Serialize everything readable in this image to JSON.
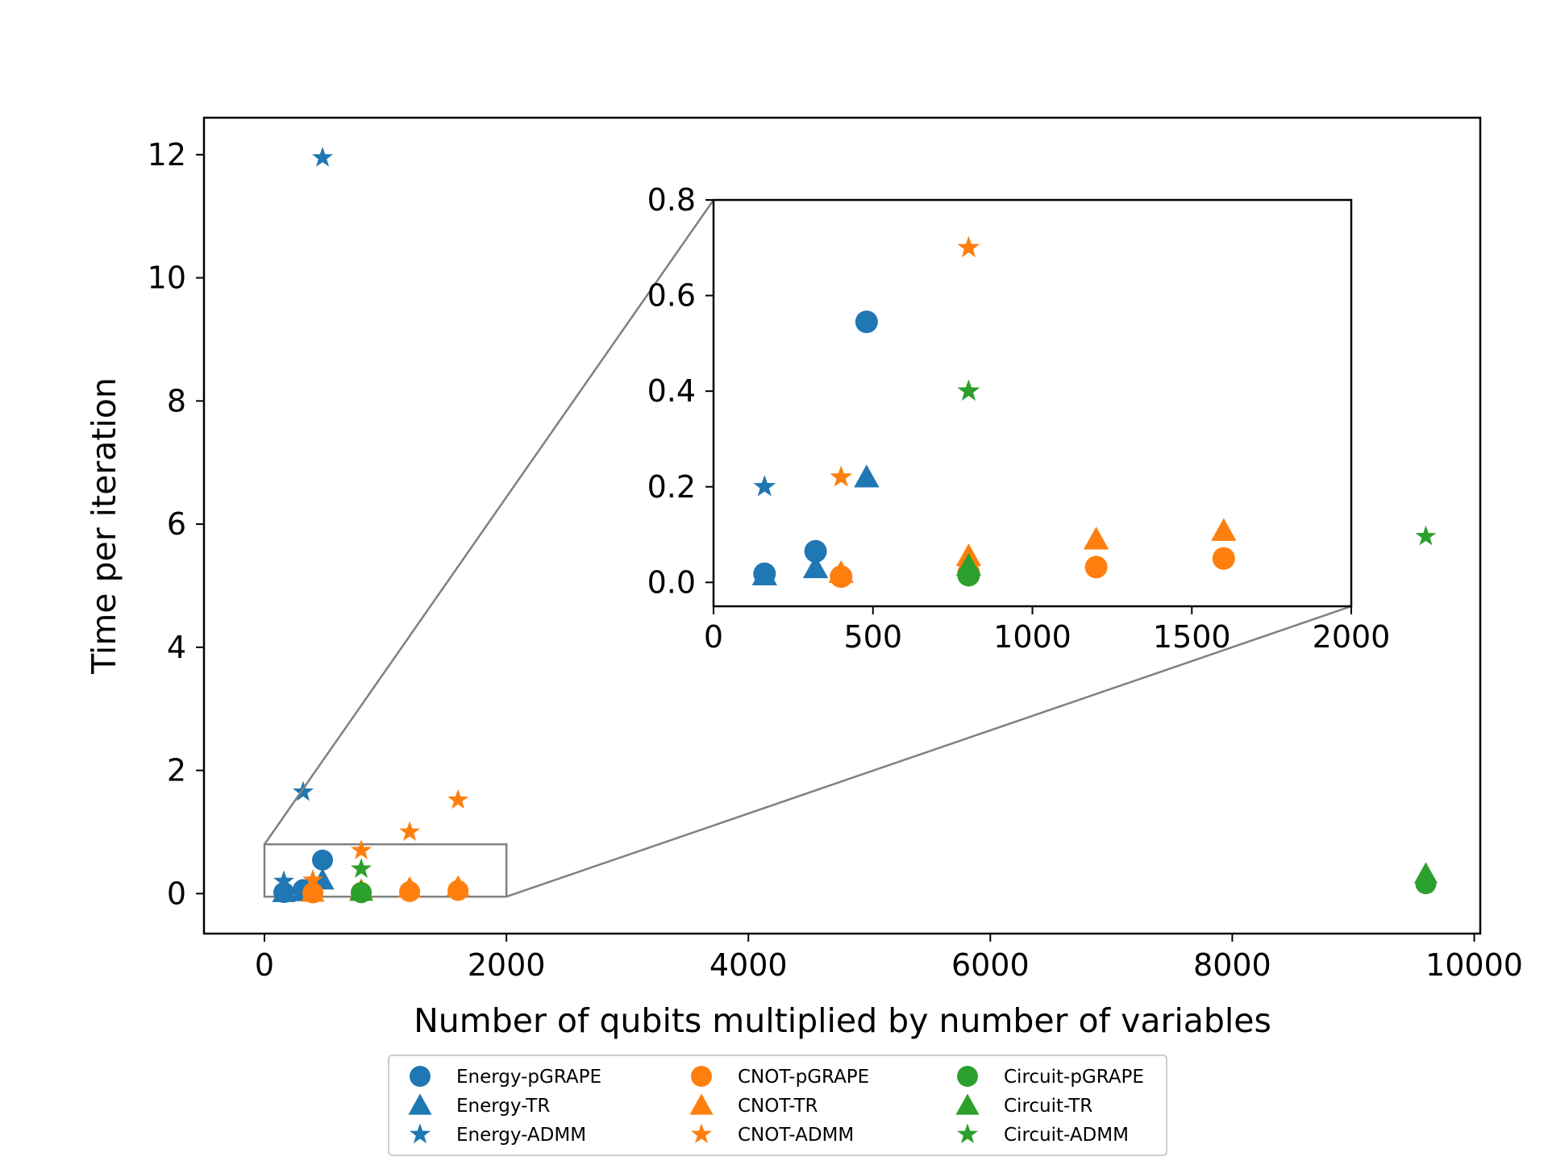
{
  "chart_data": {
    "type": "scatter",
    "title": "",
    "xlabel": "Number of qubits multiplied by number of variables",
    "ylabel": "Time per iteration",
    "xlim": [
      -500,
      10050
    ],
    "ylim": [
      -0.65,
      12.6
    ],
    "xticks": [
      0,
      2000,
      4000,
      6000,
      8000,
      10000
    ],
    "yticks": [
      0,
      2,
      4,
      6,
      8,
      10,
      12
    ],
    "grid": false,
    "legend_position": "bottom-center, below plot",
    "series": [
      {
        "name": "Energy-pGRAPE",
        "marker": "circle",
        "color": "#1f77b4",
        "x": [
          160,
          320,
          480
        ],
        "y": [
          0.018,
          0.065,
          0.545
        ]
      },
      {
        "name": "Energy-TR",
        "marker": "triangle",
        "color": "#1f77b4",
        "x": [
          160,
          320,
          480
        ],
        "y": [
          0.015,
          0.03,
          0.22
        ]
      },
      {
        "name": "Energy-ADMM",
        "marker": "star",
        "color": "#1f77b4",
        "x": [
          160,
          320,
          480
        ],
        "y": [
          0.2,
          1.65,
          11.95
        ]
      },
      {
        "name": "CNOT-pGRAPE",
        "marker": "circle",
        "color": "#ff7f0e",
        "x": [
          400,
          800,
          1200,
          1600
        ],
        "y": [
          0.012,
          0.02,
          0.032,
          0.05
        ]
      },
      {
        "name": "CNOT-TR",
        "marker": "triangle",
        "color": "#ff7f0e",
        "x": [
          400,
          800,
          1200,
          1600
        ],
        "y": [
          0.02,
          0.055,
          0.09,
          0.108
        ]
      },
      {
        "name": "CNOT-ADMM",
        "marker": "star",
        "color": "#ff7f0e",
        "x": [
          400,
          800,
          1200,
          1600
        ],
        "y": [
          0.22,
          0.7,
          1.0,
          1.52
        ]
      },
      {
        "name": "Circuit-pGRAPE",
        "marker": "circle",
        "color": "#2ca02c",
        "x": [
          800,
          9600
        ],
        "y": [
          0.015,
          0.16
        ]
      },
      {
        "name": "Circuit-TR",
        "marker": "triangle",
        "color": "#2ca02c",
        "x": [
          800,
          9600
        ],
        "y": [
          0.035,
          0.32
        ]
      },
      {
        "name": "Circuit-ADMM",
        "marker": "star",
        "color": "#2ca02c",
        "x": [
          800,
          9600
        ],
        "y": [
          0.4,
          5.8
        ]
      }
    ],
    "inset": {
      "xlim": [
        0,
        2000
      ],
      "ylim": [
        -0.05,
        0.8
      ],
      "xticks": [
        0,
        500,
        1000,
        1500,
        2000
      ],
      "yticks": [
        "0.0",
        "0.2",
        "0.4",
        "0.6",
        "0.8"
      ]
    }
  }
}
